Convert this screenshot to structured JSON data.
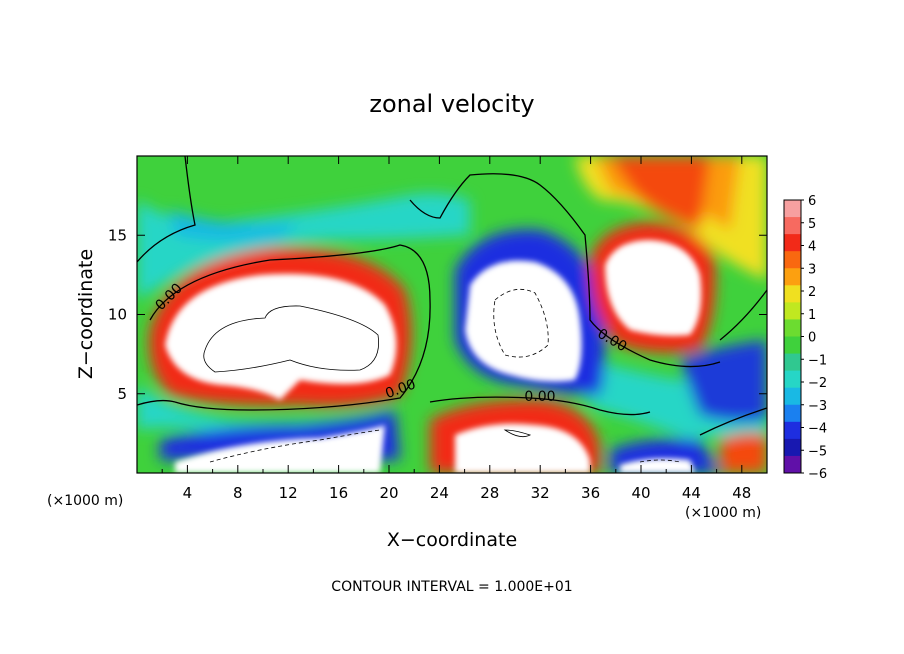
{
  "chart_data": {
    "type": "heatmap",
    "title": "zonal velocity",
    "xlabel": "X−coordinate",
    "ylabel": "Z−coordinate",
    "x_ticks": [
      4,
      8,
      12,
      16,
      20,
      24,
      28,
      32,
      36,
      40,
      44,
      48
    ],
    "y_ticks": [
      5,
      10,
      15
    ],
    "xlim": [
      0,
      50
    ],
    "ylim": [
      0,
      20
    ],
    "x_unit_label": "(×1000 m)",
    "z_unit_label": "(×1000 m)",
    "colorbar": {
      "ticks": [
        "6",
        "5",
        "4",
        "3",
        "2",
        "1",
        "0",
        "−1",
        "−2",
        "−3",
        "−4",
        "−5",
        "−6"
      ],
      "range": [
        -6,
        6
      ]
    },
    "contour_labels": [
      "0.00",
      "0.00",
      "0.00",
      "0.00"
    ],
    "footer": "CONTOUR INTERVAL = 1.000E+01"
  }
}
